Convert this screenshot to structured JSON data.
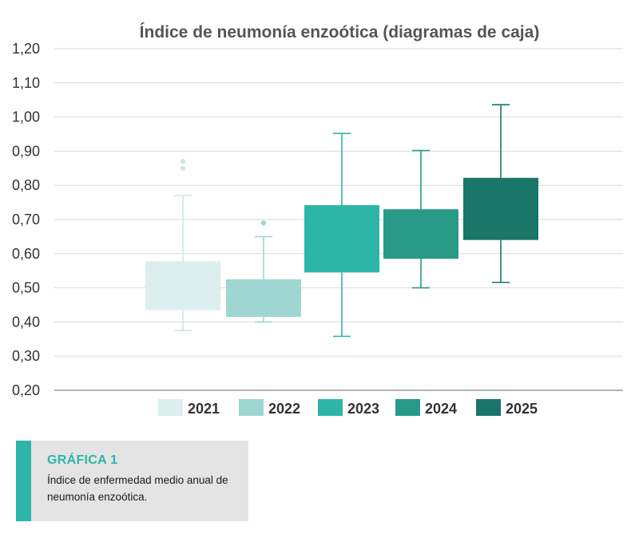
{
  "chart_data": {
    "type": "boxplot",
    "title": "Índice de neumonía enzoótica (diagramas de caja)",
    "ylim": [
      0.2,
      1.2
    ],
    "yticks": [
      "0,20",
      "0,30",
      "0,40",
      "0,50",
      "0,60",
      "0,70",
      "0,80",
      "0,90",
      "1,00",
      "1,10",
      "1,20"
    ],
    "grid": true,
    "legend_position": "bottom",
    "series": [
      {
        "name": "2021",
        "color": "#dcefee",
        "whisker_low": 0.375,
        "q1": 0.435,
        "q3": 0.578,
        "whisker_high": 0.77,
        "outliers": [
          0.85,
          0.87
        ]
      },
      {
        "name": "2022",
        "color": "#9fd6d1",
        "whisker_low": 0.4,
        "q1": 0.415,
        "q3": 0.525,
        "whisker_high": 0.65,
        "outliers": [
          0.69
        ]
      },
      {
        "name": "2023",
        "color": "#2db5a9",
        "whisker_low": 0.358,
        "q1": 0.545,
        "q3": 0.742,
        "whisker_high": 0.952,
        "outliers": []
      },
      {
        "name": "2024",
        "color": "#289a87",
        "whisker_low": 0.5,
        "q1": 0.585,
        "q3": 0.73,
        "whisker_high": 0.902,
        "outliers": []
      },
      {
        "name": "2025",
        "color": "#1a7668",
        "whisker_low": 0.516,
        "q1": 0.64,
        "q3": 0.822,
        "whisker_high": 1.036,
        "outliers": []
      }
    ]
  },
  "caption": {
    "heading": "GRÁFICA 1",
    "text": "Índice de enfermedad medio anual de neumonía enzoótica.",
    "accent_color": "#2db5a9"
  }
}
